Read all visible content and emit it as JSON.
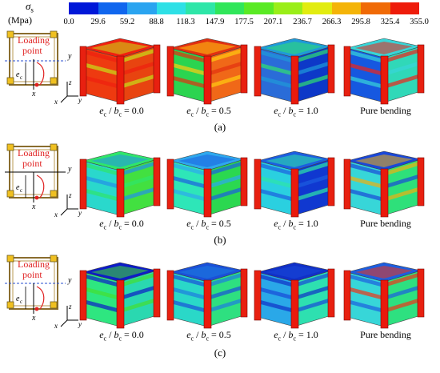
{
  "legend": {
    "symbol": "σ",
    "symbol_sub": "s",
    "unit": "(Mpa)",
    "ticks": [
      "0.0",
      "29.6",
      "59.2",
      "88.8",
      "118.3",
      "147.9",
      "177.5",
      "207.1",
      "236.7",
      "266.3",
      "295.8",
      "325.4",
      "355.0"
    ],
    "colors": [
      "#0018d8",
      "#1066ee",
      "#2aa4f0",
      "#2ee0e6",
      "#2ee6a8",
      "#30e65a",
      "#5aea24",
      "#9aee18",
      "#e2ec10",
      "#f4b408",
      "#f06a06",
      "#ee1c0a"
    ]
  },
  "schematic": {
    "loading_label_line1": "Loading",
    "loading_label_line2": "point",
    "axis_y": "y",
    "axis_x": "x",
    "axis_z": "z",
    "ecc": "e",
    "ecc_sub": "c"
  },
  "cases": [
    {
      "e": "e",
      "e_sub": "c",
      "b": "b",
      "b_sub": "c",
      "value": "0.0"
    },
    {
      "e": "e",
      "e_sub": "c",
      "b": "b",
      "b_sub": "c",
      "value": "0.5"
    },
    {
      "e": "e",
      "e_sub": "c",
      "b": "b",
      "b_sub": "c",
      "value": "1.0"
    },
    {
      "label": "Pure bending"
    }
  ],
  "rows": [
    {
      "label": "(a)",
      "scheme": "a"
    },
    {
      "label": "(b)",
      "scheme": "b"
    },
    {
      "label": "(c)",
      "scheme": "c"
    }
  ],
  "contours": {
    "a": [
      {
        "top": "#f02010",
        "mid": "#ee3a10",
        "low": "#e84410",
        "alt": "#c8e018"
      },
      {
        "top": "#e23010",
        "mid": "#2bd450",
        "low": "#f06818",
        "alt": "#ffcc10"
      },
      {
        "top": "#1f9ad8",
        "mid": "#2a6cd8",
        "low": "#0d38c8",
        "alt": "#30e070"
      },
      {
        "top": "#37d6d8",
        "mid": "#1658e0",
        "low": "#30d8b8",
        "alt": "#ef2418"
      }
    ],
    "b": [
      {
        "top": "#2fe66a",
        "mid": "#2ad8cc",
        "low": "#42e040",
        "alt": "#2490e8"
      },
      {
        "top": "#2ea8ee",
        "mid": "#2ee6b8",
        "low": "#2bd850",
        "alt": "#1c5ee0"
      },
      {
        "top": "#1c5ee0",
        "mid": "#2ad0e0",
        "low": "#1038d0",
        "alt": "#2ee6a8"
      },
      {
        "top": "#1a48d8",
        "mid": "#37d6d8",
        "low": "#2ee07a",
        "alt": "#f0b010"
      }
    ],
    "c": [
      {
        "top": "#0d1cc8",
        "mid": "#2ee680",
        "low": "#2ad8b0",
        "alt": "#44e030"
      },
      {
        "top": "#1a50d8",
        "mid": "#2ad8c8",
        "low": "#2ee080",
        "alt": "#1e7ce0"
      },
      {
        "top": "#1030c8",
        "mid": "#2aa8e8",
        "low": "#2ee0b0",
        "alt": "#1848d8"
      },
      {
        "top": "#1c5ee0",
        "mid": "#37d6d8",
        "low": "#2ee080",
        "alt": "#ef3418"
      }
    ]
  }
}
